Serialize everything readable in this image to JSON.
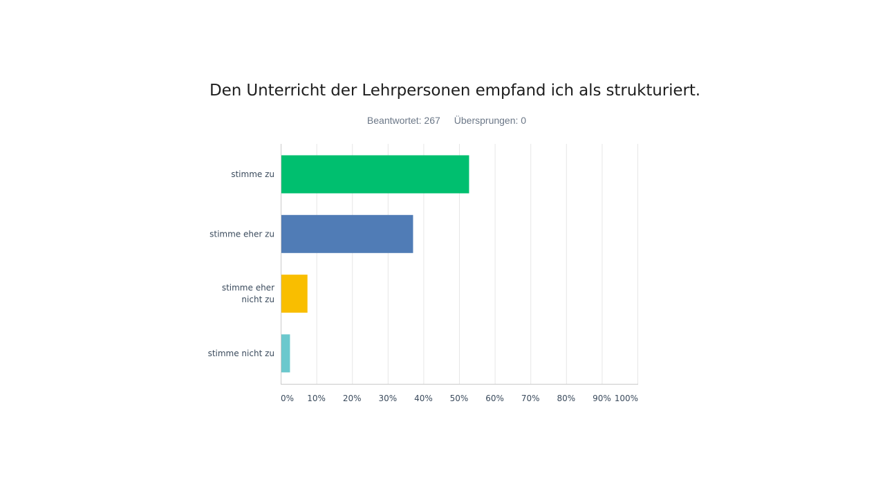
{
  "header": {
    "title": "Den Unterricht der Lehrpersonen empfand ich als strukturiert.",
    "answered": "Beantwortet: 267",
    "skipped": "Übersprungen: 0"
  },
  "colors": {
    "stimme_zu": "#00bf6f",
    "stimme_eher_zu": "#507cb6",
    "stimme_eher_nicht_zu": "#f9be00",
    "stimme_nicht_zu": "#6bc8cd",
    "grid": "#e6e6e6",
    "axis": "#c9c9c9"
  },
  "chart_data": {
    "type": "bar",
    "orientation": "horizontal",
    "title": "Den Unterricht der Lehrpersonen empfand ich als strukturiert.",
    "categories": [
      [
        "stimme zu"
      ],
      [
        "stimme eher zu"
      ],
      [
        "stimme eher",
        "nicht zu"
      ],
      [
        "stimme nicht zu"
      ]
    ],
    "values": [
      52.8,
      37.1,
      7.5,
      2.6
    ],
    "bar_colors": [
      "#00bf6f",
      "#507cb6",
      "#f9be00",
      "#6bc8cd"
    ],
    "xlim": [
      0,
      100
    ],
    "xticks": [
      "0%",
      "10%",
      "20%",
      "30%",
      "40%",
      "50%",
      "60%",
      "70%",
      "80%",
      "90%",
      "100%"
    ],
    "grid": true,
    "legend": "none"
  }
}
